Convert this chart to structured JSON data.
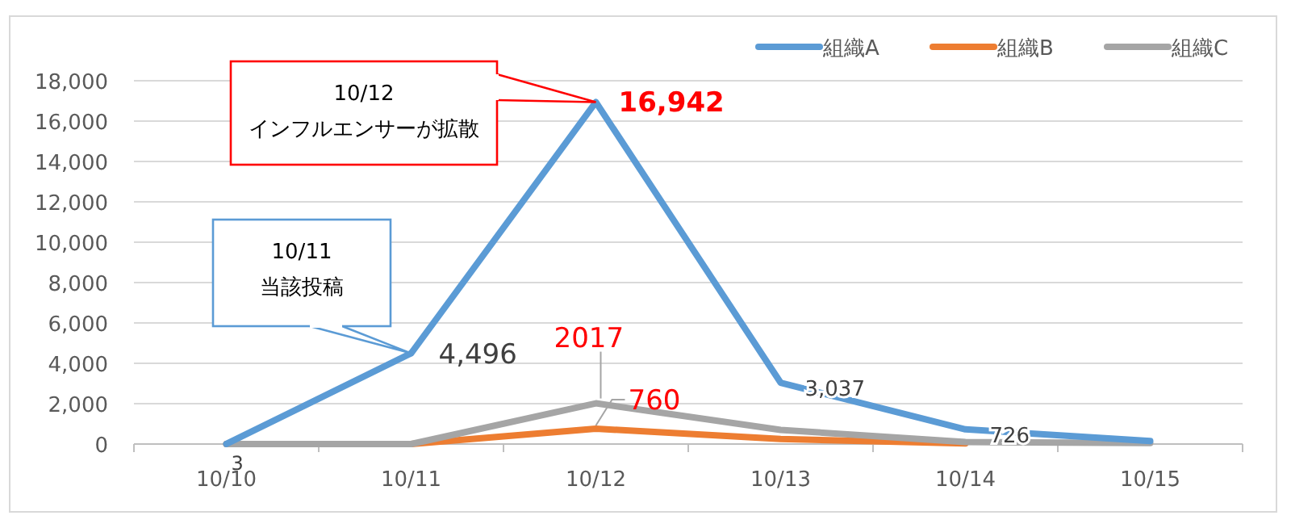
{
  "chart_data": {
    "type": "line",
    "categories": [
      "10/10",
      "10/11",
      "10/12",
      "10/13",
      "10/14",
      "10/15"
    ],
    "series": [
      {
        "name": "組織A",
        "color": "#5b9bd5",
        "values": [
          3,
          4496,
          16942,
          3037,
          726,
          150
        ],
        "value_labels": [
          "3",
          "4,496",
          "16,942",
          "3,037",
          "726",
          null
        ]
      },
      {
        "name": "組織B",
        "color": "#ed7d31",
        "values": [
          0,
          0,
          760,
          250,
          30,
          null
        ],
        "value_labels": [
          null,
          null,
          "760",
          null,
          null,
          null
        ]
      },
      {
        "name": "組織C",
        "color": "#a5a5a5",
        "values": [
          0,
          0,
          2017,
          700,
          100,
          50
        ],
        "value_labels": [
          null,
          null,
          "2017",
          null,
          null,
          null
        ]
      }
    ],
    "ylim": [
      0,
      18000
    ],
    "yticks": [
      {
        "value": 0,
        "label": "0"
      },
      {
        "value": 2000,
        "label": "2,000"
      },
      {
        "value": 4000,
        "label": "4,000"
      },
      {
        "value": 6000,
        "label": "6,000"
      },
      {
        "value": 8000,
        "label": "8,000"
      },
      {
        "value": 10000,
        "label": "10,000"
      },
      {
        "value": 12000,
        "label": "12,000"
      },
      {
        "value": 14000,
        "label": "14,000"
      },
      {
        "value": 16000,
        "label": "16,000"
      },
      {
        "value": 18000,
        "label": "18,000"
      }
    ],
    "grid": "y",
    "legend": "top right",
    "annotations": [
      {
        "text": "10/12\nインフルエンサーが拡散",
        "x": "10/12",
        "y": 16942
      },
      {
        "text": "10/11\n当該投稿",
        "x": "10/11",
        "y": 4496
      }
    ]
  }
}
